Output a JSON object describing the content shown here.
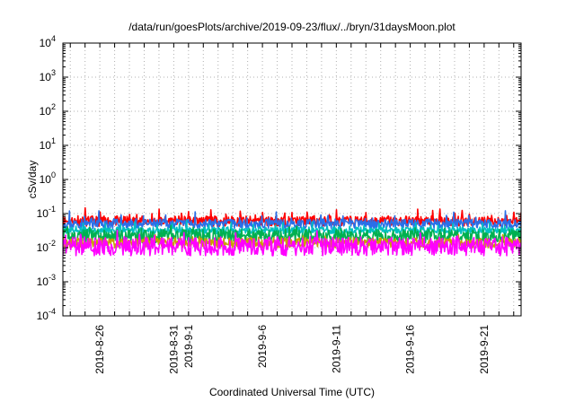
{
  "chart_data": {
    "type": "line",
    "title": "/data/run/goesPlots/archive/2019-09-23/flux/../bryn/31daysMoon.plot",
    "xlabel": "Coordinated Universal Time (UTC)",
    "ylabel": "cSv/day",
    "y_scale": "log",
    "ylim": [
      0.0001,
      10000
    ],
    "y_ticks": [
      {
        "base": "10",
        "exp": "-4"
      },
      {
        "base": "10",
        "exp": "-3"
      },
      {
        "base": "10",
        "exp": "-2"
      },
      {
        "base": "10",
        "exp": "-1"
      },
      {
        "base": "10",
        "exp": "0"
      },
      {
        "base": "10",
        "exp": "1"
      },
      {
        "base": "10",
        "exp": "2"
      },
      {
        "base": "10",
        "exp": "3"
      },
      {
        "base": "10",
        "exp": "4"
      }
    ],
    "xlim": [
      "2019-08-23T12:00",
      "2019-09-23T12:00"
    ],
    "x_ticks": [
      "2019-8-26",
      "2019-8-31",
      "2019-9-1",
      "2019-9-6",
      "2019-9-11",
      "2019-9-16",
      "2019-9-21"
    ],
    "x_tick_dates": [
      "2019-08-26",
      "2019-08-31",
      "2019-09-01",
      "2019-09-06",
      "2019-09-11",
      "2019-09-16",
      "2019-09-21"
    ],
    "grid": true,
    "legend": "none",
    "series": [
      {
        "color": "#ff0000",
        "baseline": 0.06,
        "noise": 0.15,
        "spike": 0.25,
        "seed": 11
      },
      {
        "color": "#2a6fe8",
        "baseline": 0.05,
        "noise": 0.14,
        "spike": 0.22,
        "seed": 23
      },
      {
        "color": "#00c0c0",
        "baseline": 0.032,
        "noise": 0.1,
        "spike": 0.15,
        "seed": 37
      },
      {
        "color": "#00b050",
        "baseline": 0.022,
        "noise": 0.2,
        "spike": 0.1,
        "seed": 41
      },
      {
        "color": "#c8a000",
        "baseline": 0.014,
        "noise": 0.15,
        "spike": 0.1,
        "seed": 53
      },
      {
        "color": "#ff00ff",
        "baseline": 0.011,
        "noise": 0.28,
        "spike": 0.16,
        "seed": 67
      }
    ]
  }
}
